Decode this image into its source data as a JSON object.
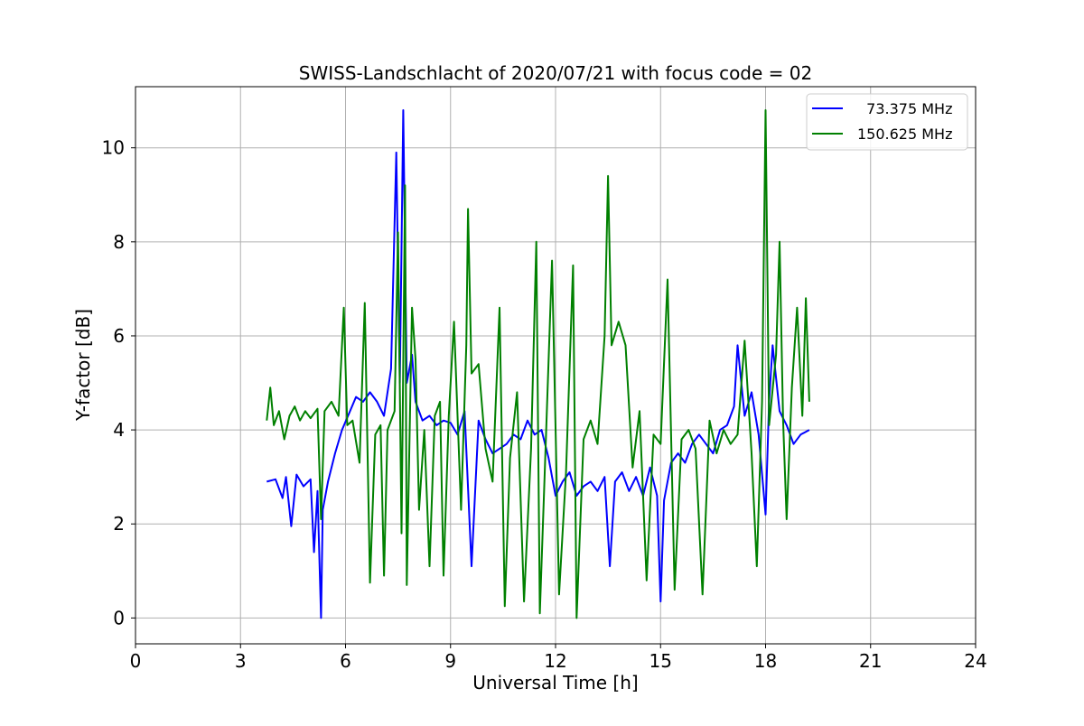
{
  "chart_data": {
    "type": "line",
    "title": "SWISS-Landschlacht of 2020/07/21 with focus code = 02",
    "xlabel": "Universal Time [h]",
    "ylabel": "Y-factor [dB]",
    "xlim": [
      0,
      24
    ],
    "ylim": [
      -0.55,
      11.3
    ],
    "xticks": [
      0,
      3,
      6,
      9,
      12,
      15,
      18,
      21,
      24
    ],
    "yticks": [
      0,
      2,
      4,
      6,
      8,
      10
    ],
    "grid": true,
    "legend_position": "top-right",
    "series": [
      {
        "name": "  73.375 MHz",
        "color": "#0000ff",
        "points": [
          [
            3.75,
            2.9
          ],
          [
            4.0,
            2.95
          ],
          [
            4.2,
            2.55
          ],
          [
            4.3,
            3.0
          ],
          [
            4.45,
            1.95
          ],
          [
            4.6,
            3.05
          ],
          [
            4.8,
            2.8
          ],
          [
            5.0,
            2.95
          ],
          [
            5.1,
            1.4
          ],
          [
            5.2,
            2.7
          ],
          [
            5.3,
            0.0
          ],
          [
            5.35,
            2.3
          ],
          [
            5.5,
            2.9
          ],
          [
            5.7,
            3.5
          ],
          [
            5.9,
            4.0
          ],
          [
            6.1,
            4.35
          ],
          [
            6.3,
            4.7
          ],
          [
            6.5,
            4.6
          ],
          [
            6.7,
            4.8
          ],
          [
            6.9,
            4.6
          ],
          [
            7.1,
            4.3
          ],
          [
            7.3,
            5.3
          ],
          [
            7.45,
            9.9
          ],
          [
            7.55,
            5.0
          ],
          [
            7.65,
            10.8
          ],
          [
            7.75,
            5.0
          ],
          [
            7.9,
            5.6
          ],
          [
            8.0,
            4.6
          ],
          [
            8.2,
            4.2
          ],
          [
            8.4,
            4.3
          ],
          [
            8.6,
            4.1
          ],
          [
            8.8,
            4.2
          ],
          [
            9.0,
            4.15
          ],
          [
            9.2,
            3.9
          ],
          [
            9.4,
            4.4
          ],
          [
            9.6,
            1.1
          ],
          [
            9.8,
            4.2
          ],
          [
            10.0,
            3.8
          ],
          [
            10.2,
            3.5
          ],
          [
            10.4,
            3.6
          ],
          [
            10.6,
            3.7
          ],
          [
            10.8,
            3.9
          ],
          [
            11.0,
            3.8
          ],
          [
            11.2,
            4.2
          ],
          [
            11.4,
            3.9
          ],
          [
            11.6,
            4.0
          ],
          [
            11.8,
            3.4
          ],
          [
            12.0,
            2.6
          ],
          [
            12.2,
            2.9
          ],
          [
            12.4,
            3.1
          ],
          [
            12.6,
            2.6
          ],
          [
            12.8,
            2.8
          ],
          [
            13.0,
            2.9
          ],
          [
            13.2,
            2.7
          ],
          [
            13.4,
            3.0
          ],
          [
            13.55,
            1.1
          ],
          [
            13.7,
            2.9
          ],
          [
            13.9,
            3.1
          ],
          [
            14.1,
            2.7
          ],
          [
            14.3,
            3.0
          ],
          [
            14.5,
            2.6
          ],
          [
            14.7,
            3.2
          ],
          [
            14.9,
            2.6
          ],
          [
            15.0,
            0.35
          ],
          [
            15.1,
            2.5
          ],
          [
            15.3,
            3.3
          ],
          [
            15.5,
            3.5
          ],
          [
            15.7,
            3.3
          ],
          [
            15.9,
            3.7
          ],
          [
            16.1,
            3.9
          ],
          [
            16.3,
            3.7
          ],
          [
            16.5,
            3.5
          ],
          [
            16.7,
            4.0
          ],
          [
            16.9,
            4.1
          ],
          [
            17.1,
            4.5
          ],
          [
            17.2,
            5.8
          ],
          [
            17.4,
            4.3
          ],
          [
            17.6,
            4.8
          ],
          [
            17.8,
            3.9
          ],
          [
            18.0,
            2.2
          ],
          [
            18.1,
            4.6
          ],
          [
            18.2,
            5.8
          ],
          [
            18.4,
            4.4
          ],
          [
            18.6,
            4.1
          ],
          [
            18.8,
            3.7
          ],
          [
            19.0,
            3.9
          ],
          [
            19.25,
            4.0
          ]
        ]
      },
      {
        "name": "150.625 MHz",
        "color": "#008000",
        "points": [
          [
            3.75,
            4.2
          ],
          [
            3.85,
            4.9
          ],
          [
            3.95,
            4.1
          ],
          [
            4.1,
            4.4
          ],
          [
            4.25,
            3.8
          ],
          [
            4.4,
            4.3
          ],
          [
            4.55,
            4.5
          ],
          [
            4.7,
            4.2
          ],
          [
            4.85,
            4.4
          ],
          [
            5.0,
            4.25
          ],
          [
            5.2,
            4.45
          ],
          [
            5.3,
            2.1
          ],
          [
            5.4,
            4.4
          ],
          [
            5.6,
            4.6
          ],
          [
            5.8,
            4.3
          ],
          [
            5.95,
            6.6
          ],
          [
            6.05,
            4.1
          ],
          [
            6.2,
            4.2
          ],
          [
            6.4,
            3.3
          ],
          [
            6.55,
            6.7
          ],
          [
            6.7,
            0.75
          ],
          [
            6.85,
            3.9
          ],
          [
            7.0,
            4.1
          ],
          [
            7.1,
            0.9
          ],
          [
            7.2,
            4.0
          ],
          [
            7.4,
            4.4
          ],
          [
            7.5,
            8.2
          ],
          [
            7.6,
            1.8
          ],
          [
            7.7,
            9.2
          ],
          [
            7.75,
            0.7
          ],
          [
            7.9,
            6.6
          ],
          [
            8.0,
            5.5
          ],
          [
            8.1,
            2.3
          ],
          [
            8.25,
            4.0
          ],
          [
            8.4,
            1.1
          ],
          [
            8.55,
            4.3
          ],
          [
            8.7,
            4.6
          ],
          [
            8.8,
            0.9
          ],
          [
            8.95,
            4.3
          ],
          [
            9.1,
            6.3
          ],
          [
            9.3,
            2.3
          ],
          [
            9.45,
            5.8
          ],
          [
            9.5,
            8.7
          ],
          [
            9.6,
            5.2
          ],
          [
            9.8,
            5.4
          ],
          [
            10.0,
            3.6
          ],
          [
            10.2,
            2.9
          ],
          [
            10.4,
            6.6
          ],
          [
            10.55,
            0.25
          ],
          [
            10.7,
            3.4
          ],
          [
            10.9,
            4.8
          ],
          [
            11.1,
            0.35
          ],
          [
            11.3,
            3.6
          ],
          [
            11.45,
            8.0
          ],
          [
            11.55,
            0.1
          ],
          [
            11.7,
            3.3
          ],
          [
            11.9,
            7.6
          ],
          [
            12.1,
            0.5
          ],
          [
            12.3,
            3.1
          ],
          [
            12.5,
            7.5
          ],
          [
            12.6,
            0.0
          ],
          [
            12.8,
            3.8
          ],
          [
            13.0,
            4.2
          ],
          [
            13.2,
            3.7
          ],
          [
            13.4,
            6.0
          ],
          [
            13.5,
            9.4
          ],
          [
            13.6,
            5.8
          ],
          [
            13.8,
            6.3
          ],
          [
            14.0,
            5.8
          ],
          [
            14.2,
            3.2
          ],
          [
            14.4,
            4.4
          ],
          [
            14.6,
            0.8
          ],
          [
            14.8,
            3.9
          ],
          [
            15.0,
            3.7
          ],
          [
            15.2,
            7.2
          ],
          [
            15.4,
            0.6
          ],
          [
            15.6,
            3.8
          ],
          [
            15.8,
            4.0
          ],
          [
            16.0,
            3.6
          ],
          [
            16.2,
            0.5
          ],
          [
            16.4,
            4.2
          ],
          [
            16.6,
            3.5
          ],
          [
            16.8,
            4.0
          ],
          [
            17.0,
            3.7
          ],
          [
            17.2,
            3.9
          ],
          [
            17.4,
            5.9
          ],
          [
            17.6,
            3.5
          ],
          [
            17.75,
            1.1
          ],
          [
            17.9,
            4.6
          ],
          [
            18.0,
            10.8
          ],
          [
            18.1,
            4.1
          ],
          [
            18.3,
            5.6
          ],
          [
            18.4,
            8.0
          ],
          [
            18.5,
            4.2
          ],
          [
            18.6,
            2.1
          ],
          [
            18.75,
            4.9
          ],
          [
            18.9,
            6.6
          ],
          [
            19.05,
            4.3
          ],
          [
            19.15,
            6.8
          ],
          [
            19.25,
            4.6
          ]
        ]
      }
    ]
  }
}
